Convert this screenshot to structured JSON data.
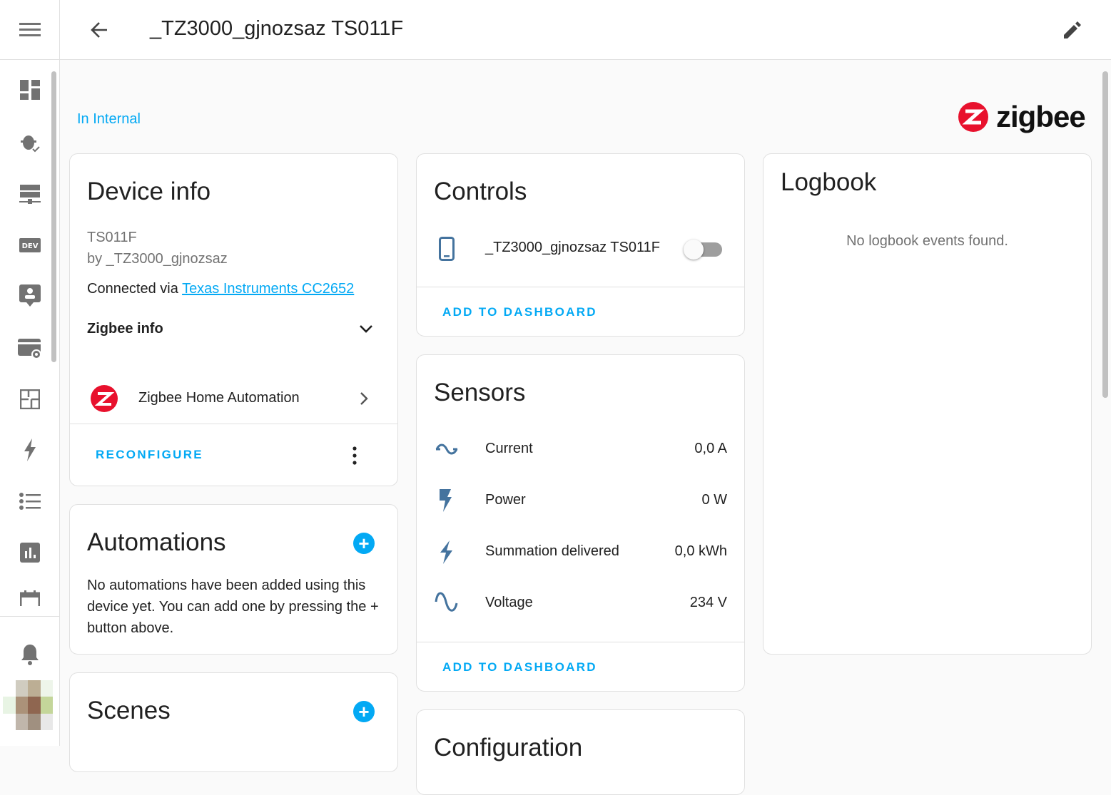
{
  "header": {
    "title": "_TZ3000_gjnozsaz TS011F"
  },
  "sidebar": {
    "items": [
      "overview",
      "logbook-debug",
      "energy-servers",
      "developer-tools",
      "user-profile",
      "settings",
      "floorplan",
      "energy",
      "todo",
      "history",
      "calendar"
    ]
  },
  "area": "In Internal",
  "brand": {
    "logo_text": "zigbee",
    "color": "#e8112d"
  },
  "accent": "#03a9f4",
  "device_info": {
    "title": "Device info",
    "model": "TS011F",
    "manufacturer": "by _TZ3000_gjnozsaz",
    "connected_prefix": "Connected via ",
    "connected_link": "Texas Instruments CC2652",
    "zigbee_info": "Zigbee info",
    "integration": "Zigbee Home Automation",
    "reconfigure": "RECONFIGURE"
  },
  "automations": {
    "title": "Automations",
    "empty": "No automations have been added using this device yet. You can add one by pressing the + button above."
  },
  "scenes": {
    "title": "Scenes"
  },
  "controls": {
    "title": "Controls",
    "entity": "_TZ3000_gjnozsaz TS011F",
    "switch_on": false,
    "add": "ADD TO DASHBOARD"
  },
  "sensors": {
    "title": "Sensors",
    "items": [
      {
        "name": "Current",
        "value": "0,0 A",
        "icon": "current-ac-icon"
      },
      {
        "name": "Power",
        "value": "0 W",
        "icon": "flash-icon"
      },
      {
        "name": "Summation delivered",
        "value": "0,0 kWh",
        "icon": "lightning-icon"
      },
      {
        "name": "Voltage",
        "value": "234 V",
        "icon": "sine-wave-icon"
      }
    ],
    "add": "ADD TO DASHBOARD"
  },
  "configuration": {
    "title": "Configuration"
  },
  "logbook": {
    "title": "Logbook",
    "empty": "No logbook events found."
  }
}
